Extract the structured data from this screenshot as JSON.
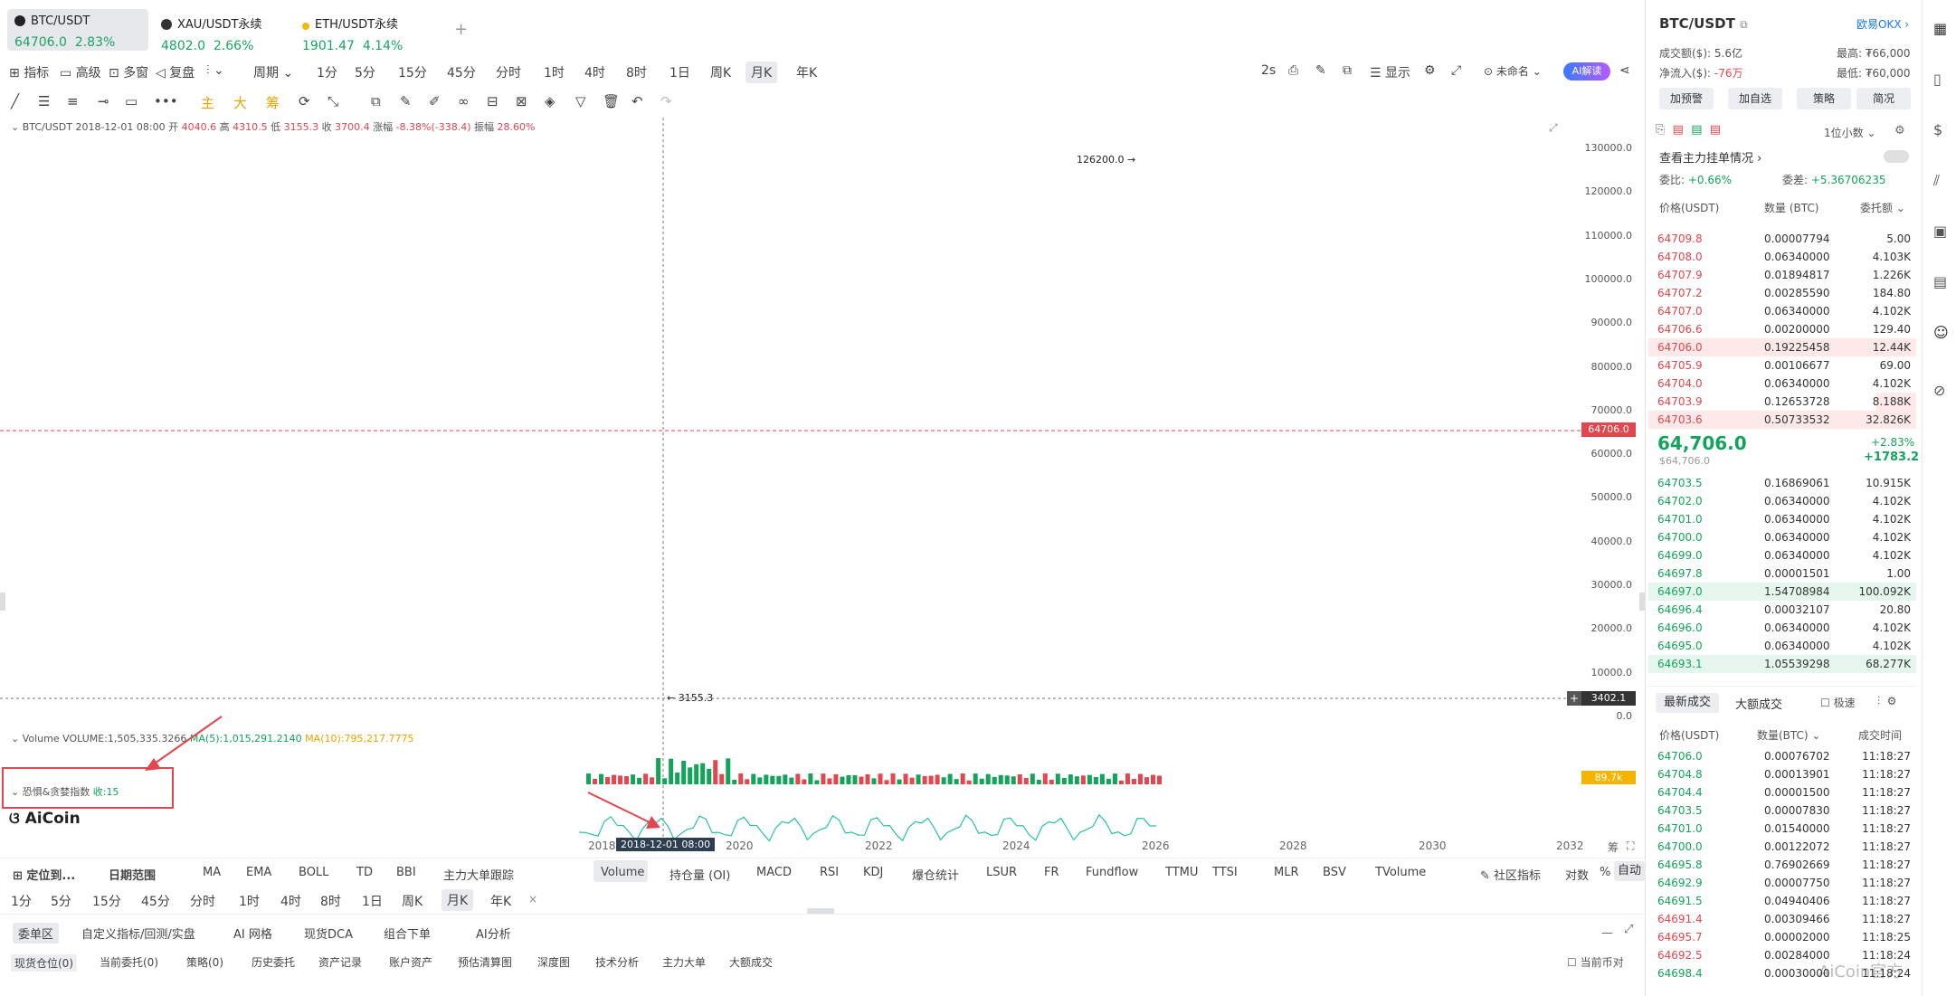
{
  "tabs": [
    {
      "name": "BTC/USDT",
      "price": "64706.0",
      "change": "2.83%"
    },
    {
      "name": "XAU/USDT永续",
      "price": "4802.0",
      "change": "2.66%"
    },
    {
      "name": "ETH/USDT永续",
      "price": "1901.47",
      "change": "4.14%"
    }
  ],
  "toolbar": {
    "indicators": "指标",
    "advanced": "高级",
    "multi": "多窗",
    "replay": "复盘",
    "period": "周期",
    "intervals": [
      "1分",
      "5分",
      "15分",
      "45分",
      "分时",
      "1时",
      "4时",
      "8时",
      "1日",
      "周K",
      "月K",
      "年K"
    ],
    "selected": "月K",
    "speed": "2s",
    "display": "显示",
    "layout": "未命名",
    "ai": "AI解读"
  },
  "drawtools": {
    "main": "主",
    "big": "大",
    "chip": "筹"
  },
  "ohlc": {
    "symbol": "BTC/USDT",
    "date": "2018-12-01 08:00",
    "open_l": "开",
    "open": "4040.6",
    "high_l": "高",
    "high": "4310.5",
    "low_l": "低",
    "low": "3155.3",
    "close_l": "收",
    "close": "3700.4",
    "chg_l": "涨幅",
    "chg": "-8.38%(-338.4)",
    "amp_l": "振幅",
    "amp": "28.60%"
  },
  "yaxis": [
    "130000.0",
    "120000.0",
    "110000.0",
    "100000.0",
    "90000.0",
    "80000.0",
    "70000.0",
    "60000.0",
    "50000.0",
    "40000.0",
    "30000.0",
    "20000.0",
    "10000.0",
    "0.0"
  ],
  "price_tag": "64706.0",
  "cross_tag": "3402.1",
  "high_mark": "126200.0",
  "low_mark": "3155.3",
  "volume": {
    "label": "Volume",
    "vol": "VOLUME:1,505,335.3266",
    "ma5": "MA(5):1,015,291.2140",
    "ma10": "MA(10):795,217.7775",
    "tag": "89.7k"
  },
  "fear": {
    "label": "恐惧&贪婪指数",
    "value": "收:15"
  },
  "logo": "AiCoin",
  "xaxis": [
    "2018",
    "2020",
    "2022",
    "2024",
    "2026",
    "2028",
    "2030",
    "2032"
  ],
  "xaxis_cursor": "2018-12-01 08:00",
  "xaxis_corner": "筹",
  "bottom_bar": {
    "locate": "定位到...",
    "range": "日期范围",
    "indicators": [
      "MA",
      "EMA",
      "BOLL",
      "TD",
      "BBI",
      "主力大单跟踪"
    ],
    "sub": [
      "Volume",
      "持仓量 (OI)",
      "MACD",
      "RSI",
      "KDJ",
      "爆仓统计",
      "LSUR",
      "FR",
      "Fundflow",
      "TTMU",
      "TTSI",
      "MLR",
      "BSV",
      "TVolume"
    ],
    "community": "社区指标",
    "log": "对数",
    "pct": "%",
    "auto": "自动"
  },
  "intervals2": [
    "1分",
    "5分",
    "15分",
    "45分",
    "分时",
    "1时",
    "4时",
    "8时",
    "1日",
    "周K",
    "月K",
    "年K"
  ],
  "bottom_tabs": [
    "委单区",
    "自定义指标/回测/实盘",
    "AI 网格",
    "现货DCA",
    "组合下单",
    "AI分析"
  ],
  "order_tabs": [
    "现货仓位(0)",
    "当前委托(0)",
    "策略(0)",
    "历史委托",
    "资产记录",
    "账户资产",
    "预估清算图",
    "深度图",
    "技术分析",
    "主力大单",
    "大额成交"
  ],
  "current_pair": "当前币对",
  "right": {
    "pair": "BTC/USDT",
    "exchange": "欧易OKX",
    "turnover_l": "成交额($):",
    "turnover": "5.6亿",
    "high_l": "最高:",
    "high": "₮66,000",
    "net_l": "净流入($):",
    "net": "-76万",
    "low_l": "最低:",
    "low": "₮60,000",
    "btns": [
      "加预警",
      "加自选",
      "策略",
      "简况"
    ],
    "decimals": "1位小数",
    "main_orders": "查看主力挂单情况",
    "ratio_l": "委比:",
    "ratio": "+0.66%",
    "diff_l": "委差:",
    "diff": "+5.36706235",
    "cols": [
      "价格(USDT)",
      "数量 (BTC)",
      "委托额"
    ],
    "last": "64,706.0",
    "last_usd": "$64,706.0",
    "pct": "+2.83%",
    "abs": "+1783.2"
  },
  "asks": [
    [
      "64709.8",
      "0.00007794",
      "5.00"
    ],
    [
      "64708.0",
      "0.06340000",
      "4.103K"
    ],
    [
      "64707.9",
      "0.01894817",
      "1.226K"
    ],
    [
      "64707.2",
      "0.00285590",
      "184.80"
    ],
    [
      "64707.0",
      "0.06340000",
      "4.102K"
    ],
    [
      "64706.6",
      "0.00200000",
      "129.40"
    ],
    [
      "64706.0",
      "0.19225458",
      "12.44K"
    ],
    [
      "64705.9",
      "0.00106677",
      "69.00"
    ],
    [
      "64704.0",
      "0.06340000",
      "4.102K"
    ],
    [
      "64703.9",
      "0.12653728",
      "8.188K"
    ],
    [
      "64703.6",
      "0.50733532",
      "32.826K"
    ]
  ],
  "bids": [
    [
      "64703.5",
      "0.16869061",
      "10.915K"
    ],
    [
      "64702.0",
      "0.06340000",
      "4.102K"
    ],
    [
      "64701.0",
      "0.06340000",
      "4.102K"
    ],
    [
      "64700.0",
      "0.06340000",
      "4.102K"
    ],
    [
      "64699.0",
      "0.06340000",
      "4.102K"
    ],
    [
      "64697.8",
      "0.00001501",
      "1.00"
    ],
    [
      "64697.0",
      "1.54708984",
      "100.092K"
    ],
    [
      "64696.4",
      "0.00032107",
      "20.80"
    ],
    [
      "64696.0",
      "0.06340000",
      "4.102K"
    ],
    [
      "64695.0",
      "0.06340000",
      "4.102K"
    ],
    [
      "64693.1",
      "1.05539298",
      "68.277K"
    ]
  ],
  "trades_tabs": {
    "latest": "最新成交",
    "large": "大额成交",
    "fast": "极速"
  },
  "trade_cols": [
    "价格(USDT)",
    "数量(BTC)",
    "成交时间"
  ],
  "trades": [
    [
      "64706.0",
      "0.00076702",
      "11:18:27",
      "g"
    ],
    [
      "64704.8",
      "0.00013901",
      "11:18:27",
      "g"
    ],
    [
      "64704.4",
      "0.00001500",
      "11:18:27",
      "g"
    ],
    [
      "64703.5",
      "0.00007830",
      "11:18:27",
      "g"
    ],
    [
      "64701.0",
      "0.01540000",
      "11:18:27",
      "g"
    ],
    [
      "64700.0",
      "0.00122072",
      "11:18:27",
      "g"
    ],
    [
      "64695.8",
      "0.76902669",
      "11:18:27",
      "g"
    ],
    [
      "64692.9",
      "0.00007750",
      "11:18:27",
      "g"
    ],
    [
      "64691.5",
      "0.04940406",
      "11:18:27",
      "g"
    ],
    [
      "64691.4",
      "0.00309466",
      "11:18:27",
      "r"
    ],
    [
      "64695.7",
      "0.00002000",
      "11:18:25",
      "r"
    ],
    [
      "64692.5",
      "0.00284000",
      "11:18:24",
      "r"
    ],
    [
      "64698.4",
      "0.00030000",
      "11:18:24",
      "g"
    ]
  ],
  "watermark": "AiCoin官方",
  "colors": {
    "up": "#14a35b",
    "down": "#e2464f",
    "accent": "#1677ff"
  }
}
